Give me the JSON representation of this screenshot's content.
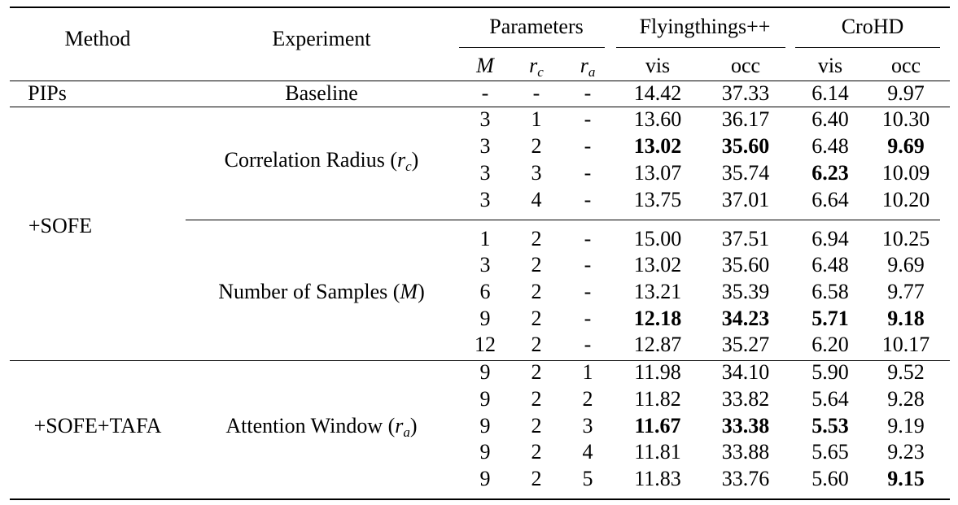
{
  "table": {
    "headers": {
      "method": "Method",
      "experiment": "Experiment",
      "parameters": "Parameters",
      "flyingthings": "Flyingthings++",
      "crohd": "CroHD",
      "param_m": "M",
      "param_rc_base": "r",
      "param_rc_sub": "c",
      "param_ra_base": "r",
      "param_ra_sub": "a",
      "vis": "vis",
      "occ": "occ"
    },
    "groups": {
      "pips": {
        "method": "PIPs",
        "experiment": "Baseline"
      },
      "sofe": {
        "method": "+SOFE",
        "exp_radius": "Correlation Radius (",
        "exp_radius_var": "r",
        "exp_radius_sub": "c",
        "exp_radius_close": ")",
        "exp_samples": "Number of Samples (",
        "exp_samples_var": "M",
        "exp_samples_close": ")"
      },
      "tafa": {
        "method": "+SOFE+TAFA",
        "exp_window": "Attention Window (",
        "exp_window_var": "r",
        "exp_window_sub": "a",
        "exp_window_close": ")"
      }
    },
    "rows": [
      [
        "-",
        "-",
        "-",
        "14.42",
        "37.33",
        "6.14",
        "9.97"
      ],
      [
        "3",
        "1",
        "-",
        "13.60",
        "36.17",
        "6.40",
        "10.30"
      ],
      [
        "3",
        "2",
        "-",
        "13.02",
        "35.60",
        "6.48",
        "9.69"
      ],
      [
        "3",
        "3",
        "-",
        "13.07",
        "35.74",
        "6.23",
        "10.09"
      ],
      [
        "3",
        "4",
        "-",
        "13.75",
        "37.01",
        "6.64",
        "10.20"
      ],
      [
        "1",
        "2",
        "-",
        "15.00",
        "37.51",
        "6.94",
        "10.25"
      ],
      [
        "3",
        "2",
        "-",
        "13.02",
        "35.60",
        "6.48",
        "9.69"
      ],
      [
        "6",
        "2",
        "-",
        "13.21",
        "35.39",
        "6.58",
        "9.77"
      ],
      [
        "9",
        "2",
        "-",
        "12.18",
        "34.23",
        "5.71",
        "9.18"
      ],
      [
        "12",
        "2",
        "-",
        "12.87",
        "35.27",
        "6.20",
        "10.17"
      ],
      [
        "9",
        "2",
        "1",
        "11.98",
        "34.10",
        "5.90",
        "9.52"
      ],
      [
        "9",
        "2",
        "2",
        "11.82",
        "33.82",
        "5.64",
        "9.28"
      ],
      [
        "9",
        "2",
        "3",
        "11.67",
        "33.38",
        "5.53",
        "9.19"
      ],
      [
        "9",
        "2",
        "4",
        "11.81",
        "33.88",
        "5.65",
        "9.23"
      ],
      [
        "9",
        "2",
        "5",
        "11.83",
        "33.76",
        "5.60",
        "9.15"
      ]
    ],
    "bold_cells": [
      [
        2,
        3
      ],
      [
        2,
        4
      ],
      [
        2,
        6
      ],
      [
        3,
        5
      ],
      [
        8,
        3
      ],
      [
        8,
        4
      ],
      [
        8,
        5
      ],
      [
        8,
        6
      ],
      [
        12,
        3
      ],
      [
        12,
        4
      ],
      [
        12,
        5
      ],
      [
        14,
        6
      ]
    ]
  }
}
